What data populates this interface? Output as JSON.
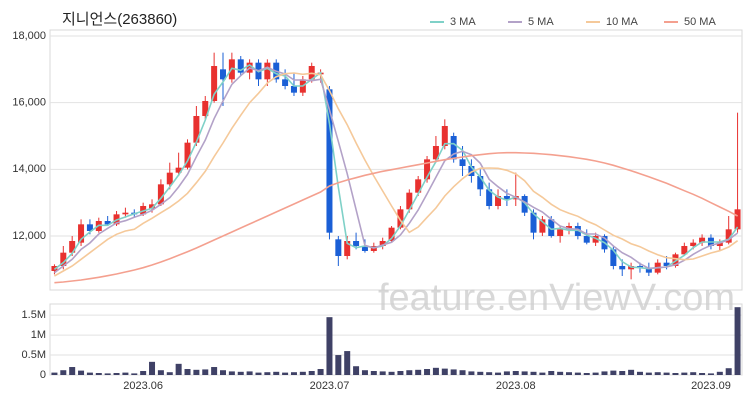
{
  "chart_data": [
    {
      "type": "candlestick",
      "title": "지니언스(263860)",
      "watermark": "feature.enViewV.com",
      "up_color": "#e8312f",
      "down_color": "#1a5fd6",
      "grid": true,
      "legend": "top-right",
      "ylim": [
        10380,
        18180
      ],
      "yticks": [
        {
          "value": 12000,
          "label": "12,000"
        },
        {
          "value": 14000,
          "label": "14,000"
        },
        {
          "value": 16000,
          "label": "16,000"
        },
        {
          "value": 18000,
          "label": "18,000"
        }
      ],
      "open": [
        10950,
        11100,
        11500,
        11800,
        12350,
        12150,
        12450,
        12350,
        12650,
        12700,
        12650,
        12800,
        12950,
        13550,
        13900,
        14050,
        14800,
        15600,
        16050,
        17000,
        16700,
        17300,
        16900,
        17200,
        16700,
        17200,
        16700,
        16500,
        16300,
        16700,
        16850,
        16400,
        11900,
        11400,
        11850,
        11700,
        11550,
        11700,
        11850,
        12250,
        12800,
        13300,
        13700,
        14300,
        14700,
        15000,
        14300,
        14100,
        13800,
        13400,
        12900,
        13200,
        13100,
        13200,
        12700,
        12100,
        12500,
        12000,
        12200,
        12300,
        12000,
        11800,
        12000,
        11600,
        11100,
        11000,
        11100,
        11050,
        10900,
        11200,
        11100,
        11450,
        11700,
        11800,
        11950,
        11700,
        11800,
        12200
      ],
      "high": [
        11150,
        11700,
        12000,
        12500,
        12500,
        12550,
        12600,
        12750,
        12850,
        12800,
        13000,
        13100,
        13700,
        14200,
        14500,
        14900,
        15900,
        16200,
        17500,
        17500,
        17500,
        17400,
        17300,
        17300,
        17300,
        17300,
        17000,
        16900,
        16800,
        17200,
        17000,
        16500,
        12000,
        12000,
        12100,
        11900,
        11800,
        11950,
        12300,
        12900,
        13400,
        13800,
        14400,
        15000,
        15500,
        15100,
        14700,
        14300,
        14000,
        13600,
        13400,
        13400,
        13900,
        13250,
        12800,
        12600,
        12600,
        12300,
        12400,
        12400,
        12200,
        12100,
        12050,
        11700,
        11300,
        11200,
        11200,
        11200,
        11300,
        11400,
        11500,
        11800,
        11900,
        12050,
        12050,
        11900,
        12600,
        15700
      ],
      "low": [
        10850,
        11000,
        11400,
        11700,
        12050,
        12100,
        12300,
        12300,
        12550,
        12550,
        12600,
        12700,
        12900,
        13400,
        13800,
        14000,
        14700,
        15500,
        16000,
        15900,
        16600,
        16800,
        16700,
        16500,
        16500,
        16600,
        16400,
        16200,
        16200,
        16600,
        16600,
        11900,
        11100,
        11300,
        11600,
        11500,
        11500,
        11600,
        11800,
        12200,
        12700,
        13200,
        13600,
        14200,
        14600,
        14200,
        13800,
        13600,
        13200,
        12800,
        12800,
        12900,
        12900,
        12600,
        11900,
        12000,
        11950,
        11800,
        12050,
        11900,
        11750,
        11700,
        11500,
        11000,
        10800,
        10700,
        10900,
        10800,
        10850,
        11000,
        11050,
        11400,
        11600,
        11700,
        11600,
        11550,
        11750,
        12100
      ],
      "close": [
        11100,
        11500,
        11850,
        12350,
        12150,
        12450,
        12350,
        12650,
        12700,
        12650,
        12900,
        12950,
        13550,
        13900,
        14050,
        14800,
        15600,
        16050,
        17100,
        16700,
        17300,
        16900,
        17200,
        16700,
        17200,
        16700,
        16500,
        16300,
        16700,
        17100,
        16900,
        12100,
        11400,
        11850,
        11700,
        11550,
        11700,
        11850,
        12250,
        12800,
        13300,
        13700,
        14300,
        14700,
        15300,
        14300,
        14100,
        13800,
        13400,
        12900,
        13200,
        13100,
        13200,
        12700,
        12100,
        12500,
        12000,
        12200,
        12300,
        12000,
        11800,
        12000,
        11600,
        11100,
        11000,
        11100,
        11050,
        10900,
        11200,
        11100,
        11450,
        11700,
        11800,
        11950,
        11700,
        11800,
        12200,
        12800
      ],
      "series": [
        {
          "name": "3 MA",
          "color": "#7fd1c8",
          "values": [
            11000,
            11200,
            11480,
            11900,
            12120,
            12320,
            12320,
            12480,
            12570,
            12670,
            12750,
            12830,
            13130,
            13470,
            13830,
            14250,
            14820,
            15480,
            16250,
            16620,
            17030,
            16970,
            17130,
            16930,
            17030,
            16870,
            16800,
            16500,
            16500,
            16700,
            16900,
            15370,
            13470,
            11780,
            11650,
            11700,
            11650,
            11700,
            11930,
            12300,
            12780,
            13270,
            13770,
            14230,
            14770,
            14770,
            14570,
            14070,
            13770,
            13370,
            13170,
            13070,
            13170,
            13000,
            12670,
            12430,
            12200,
            12230,
            12170,
            12170,
            12030,
            11930,
            11800,
            11570,
            11230,
            11070,
            11050,
            11020,
            11050,
            11070,
            11250,
            11420,
            11650,
            11820,
            11820,
            11820,
            11900,
            12270
          ]
        },
        {
          "name": "5 MA",
          "color": "#b3a2c8",
          "values": [
            10900,
            11100,
            11300,
            11600,
            11790,
            12060,
            12230,
            12390,
            12460,
            12560,
            12650,
            12770,
            12950,
            13150,
            13470,
            13850,
            14380,
            14880,
            15520,
            16050,
            16550,
            16810,
            17040,
            16960,
            17060,
            16940,
            16860,
            16680,
            16680,
            16660,
            16700,
            15780,
            14840,
            13870,
            12790,
            11720,
            11640,
            11730,
            11810,
            12030,
            12380,
            12780,
            13270,
            13760,
            14260,
            14460,
            14540,
            14440,
            14180,
            13700,
            13480,
            13280,
            13160,
            13020,
            12860,
            12720,
            12500,
            12300,
            12220,
            12200,
            12060,
            12060,
            11940,
            11700,
            11500,
            11360,
            11170,
            11030,
            11050,
            11070,
            11140,
            11270,
            11450,
            11600,
            11720,
            11790,
            11890,
            12090
          ]
        },
        {
          "name": "10 MA",
          "color": "#f5c99a",
          "values": [
            10800,
            10950,
            11100,
            11300,
            11500,
            11700,
            11900,
            12050,
            12150,
            12200,
            12380,
            12530,
            12700,
            12860,
            13050,
            13280,
            13600,
            13940,
            14380,
            14790,
            15230,
            15620,
            16000,
            16280,
            16590,
            16780,
            16870,
            16890,
            16850,
            16880,
            16840,
            16360,
            15820,
            15340,
            14790,
            14280,
            13800,
            13350,
            12900,
            12470,
            12110,
            12270,
            12560,
            12840,
            13200,
            13480,
            13720,
            13920,
            14030,
            14040,
            14030,
            13970,
            13860,
            13660,
            13340,
            13160,
            12950,
            12790,
            12680,
            12590,
            12450,
            12340,
            12180,
            12020,
            11910,
            11770,
            11680,
            11550,
            11440,
            11350,
            11320,
            11290,
            11310,
            11400,
            11490,
            11560,
            11670,
            11860
          ]
        },
        {
          "name": "50 MA",
          "color": "#f4a08f",
          "values": [
            10600,
            10620,
            10650,
            10680,
            10720,
            10760,
            10810,
            10860,
            10920,
            10980,
            11050,
            11130,
            11220,
            11320,
            11420,
            11530,
            11640,
            11760,
            11880,
            12000,
            12120,
            12240,
            12360,
            12480,
            12600,
            12720,
            12840,
            12960,
            13080,
            13200,
            13320,
            13500,
            13600,
            13680,
            13750,
            13820,
            13880,
            13940,
            13990,
            14040,
            14090,
            14140,
            14190,
            14240,
            14290,
            14330,
            14370,
            14410,
            14440,
            14470,
            14490,
            14500,
            14500,
            14490,
            14480,
            14460,
            14440,
            14410,
            14380,
            14340,
            14300,
            14250,
            14190,
            14120,
            14040,
            13960,
            13870,
            13780,
            13680,
            13580,
            13470,
            13360,
            13250,
            13130,
            13000,
            12870,
            12740,
            12600
          ]
        }
      ]
    },
    {
      "type": "bar",
      "color": "#3f4166",
      "ylim": [
        0,
        1780000
      ],
      "yticks": [
        0,
        {
          "value": 500000,
          "label": "0.5M"
        },
        {
          "value": 1000000,
          "label": "1M"
        },
        {
          "value": 1500000,
          "label": "1.5M"
        }
      ],
      "categories": [
        null,
        null,
        null,
        null,
        null,
        null,
        null,
        null,
        null,
        null,
        "2023.06",
        null,
        null,
        null,
        null,
        null,
        null,
        null,
        null,
        null,
        null,
        null,
        null,
        null,
        null,
        null,
        null,
        null,
        null,
        null,
        null,
        "2023.07",
        null,
        null,
        null,
        null,
        null,
        null,
        null,
        null,
        null,
        null,
        null,
        null,
        null,
        null,
        null,
        null,
        null,
        null,
        null,
        null,
        "2023.08",
        null,
        null,
        null,
        null,
        null,
        null,
        null,
        null,
        null,
        null,
        null,
        null,
        null,
        null,
        null,
        null,
        null,
        null,
        null,
        null,
        null,
        "2023.09",
        null,
        null,
        null
      ],
      "values": [
        60000,
        120000,
        200000,
        110000,
        60000,
        50000,
        40000,
        50000,
        60000,
        40000,
        100000,
        330000,
        120000,
        70000,
        280000,
        150000,
        130000,
        140000,
        200000,
        120000,
        90000,
        80000,
        90000,
        60000,
        70000,
        80000,
        60000,
        70000,
        80000,
        100000,
        150000,
        1450000,
        500000,
        600000,
        220000,
        120000,
        100000,
        90000,
        80000,
        100000,
        120000,
        130000,
        150000,
        180000,
        160000,
        140000,
        120000,
        90000,
        80000,
        70000,
        60000,
        90000,
        100000,
        90000,
        80000,
        60000,
        100000,
        80000,
        70000,
        60000,
        50000,
        60000,
        90000,
        110000,
        100000,
        130000,
        80000,
        60000,
        70000,
        60000,
        50000,
        60000,
        70000,
        50000,
        40000,
        80000,
        170000,
        1700000
      ]
    }
  ]
}
